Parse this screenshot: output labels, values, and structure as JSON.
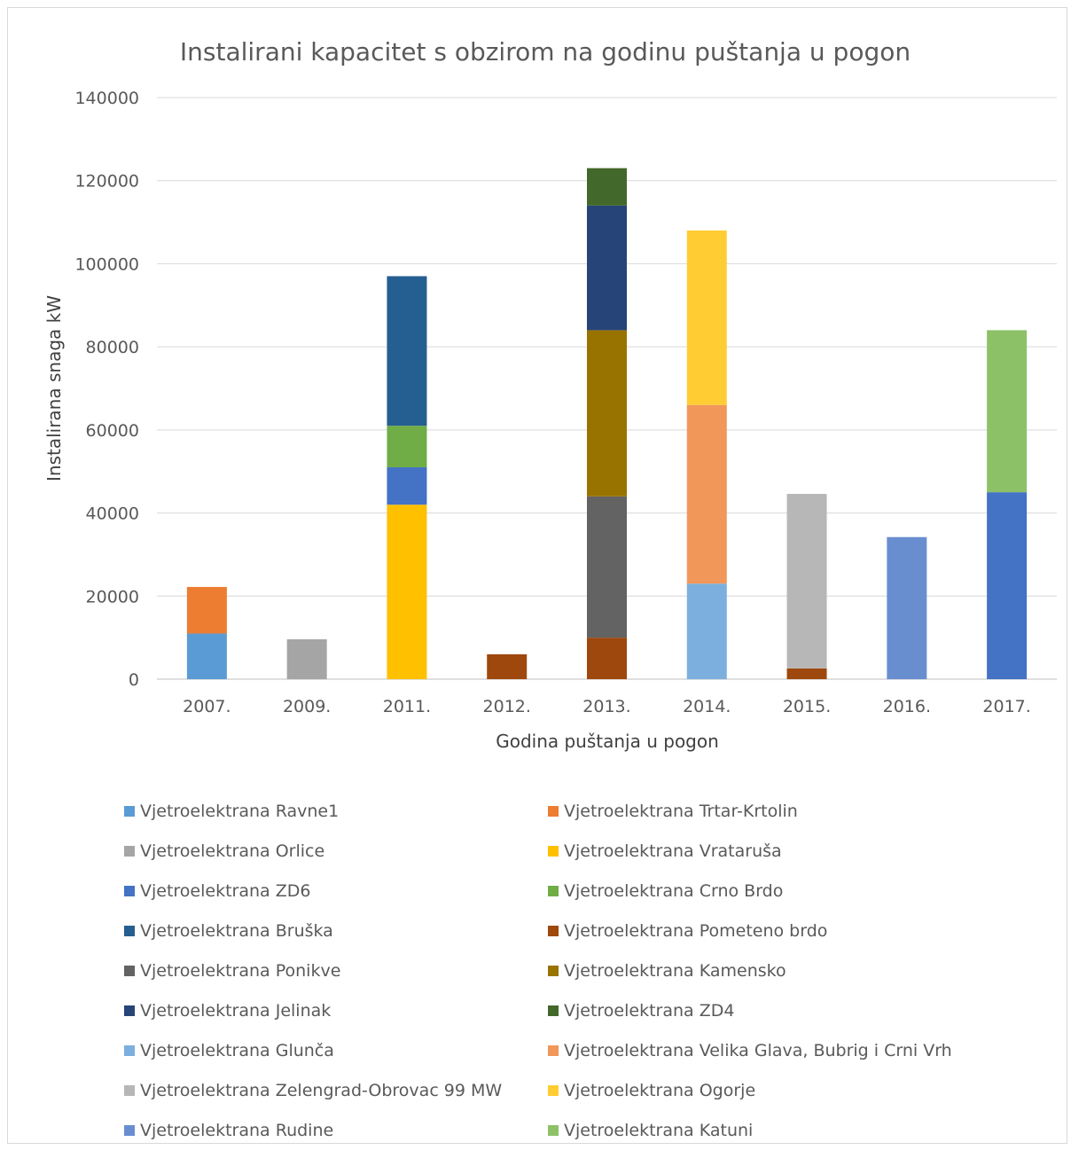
{
  "chart_data": {
    "type": "bar",
    "stacked": true,
    "title": "Instalirani kapacitet s obzirom na godinu puštanja u pogon",
    "xlabel": "Godina puštanja u pogon",
    "ylabel": "Instalirana snaga kW",
    "ylim": [
      0,
      140000
    ],
    "yticks": [
      "0",
      "20000",
      "40000",
      "60000",
      "80000",
      "100000",
      "120000",
      "140000"
    ],
    "grid": true,
    "legend_position": "bottom",
    "categories": [
      "2007.",
      "2009.",
      "2011.",
      "2012.",
      "2013.",
      "2014.",
      "2015.",
      "2016.",
      "2017."
    ],
    "series": [
      {
        "name": "Vjetroelektrana Ravne1",
        "color": "#5b9bd5",
        "values": [
          11000,
          0,
          0,
          0,
          0,
          0,
          0,
          0,
          0
        ]
      },
      {
        "name": "Vjetroelektrana Trtar-Krtolin",
        "color": "#ed7d31",
        "values": [
          11200,
          0,
          0,
          0,
          0,
          0,
          0,
          0,
          0
        ]
      },
      {
        "name": "Vjetroelektrana Orlice",
        "color": "#a5a5a5",
        "values": [
          0,
          9600,
          0,
          0,
          0,
          0,
          0,
          0,
          0
        ]
      },
      {
        "name": "Vjetroelektrana Vrataruša",
        "color": "#ffc000",
        "values": [
          0,
          0,
          42000,
          0,
          0,
          0,
          0,
          0,
          0
        ]
      },
      {
        "name": "Vjetroelektrana ZD6",
        "color": "#4472c4",
        "values": [
          0,
          0,
          9000,
          0,
          0,
          0,
          0,
          0,
          0
        ]
      },
      {
        "name": "Vjetroelektrana Crno Brdo",
        "color": "#70ad47",
        "values": [
          0,
          0,
          10000,
          0,
          0,
          0,
          0,
          0,
          0
        ]
      },
      {
        "name": "Vjetroelektrana Bruška",
        "color": "#255e91",
        "values": [
          0,
          0,
          36000,
          0,
          0,
          0,
          0,
          0,
          0
        ]
      },
      {
        "name": "Vjetroelektrana Pometeno brdo",
        "color": "#9e480e",
        "values": [
          0,
          0,
          0,
          6000,
          10000,
          0,
          2600,
          0,
          0
        ]
      },
      {
        "name": "Vjetroelektrana Ponikve",
        "color": "#636363",
        "values": [
          0,
          0,
          0,
          0,
          34000,
          0,
          0,
          0,
          0
        ]
      },
      {
        "name": "Vjetroelektrana Kamensko",
        "color": "#997300",
        "values": [
          0,
          0,
          0,
          0,
          40000,
          0,
          0,
          0,
          0
        ]
      },
      {
        "name": "Vjetroelektrana Jelinak",
        "color": "#264478",
        "values": [
          0,
          0,
          0,
          0,
          30000,
          0,
          0,
          0,
          0
        ]
      },
      {
        "name": "Vjetroelektrana ZD4",
        "color": "#43682b",
        "values": [
          0,
          0,
          0,
          0,
          9000,
          0,
          0,
          0,
          0
        ]
      },
      {
        "name": "Vjetroelektrana Glunča",
        "color": "#7cafdd",
        "values": [
          0,
          0,
          0,
          0,
          0,
          23000,
          0,
          0,
          0
        ]
      },
      {
        "name": "Vjetroelektrana Velika Glava, Bubrig i Crni Vrh",
        "color": "#f1975a",
        "values": [
          0,
          0,
          0,
          0,
          0,
          43000,
          0,
          0,
          0
        ]
      },
      {
        "name": "Vjetroelektrana Zelengrad-Obrovac 99 MW",
        "color": "#b7b7b7",
        "values": [
          0,
          0,
          0,
          0,
          0,
          0,
          42000,
          0,
          0
        ]
      },
      {
        "name": "Vjetroelektrana Ogorje",
        "color": "#ffcd33",
        "values": [
          0,
          0,
          0,
          0,
          0,
          42000,
          0,
          0,
          0
        ]
      },
      {
        "name": "Vjetroelektrana Rudine",
        "color": "#698ed0",
        "values": [
          0,
          0,
          0,
          0,
          0,
          0,
          0,
          34200,
          0
        ]
      },
      {
        "name": "Vjetroelektrana Katuni",
        "color": "#8cc168",
        "values": [
          0,
          0,
          0,
          0,
          0,
          0,
          0,
          0,
          39000
        ]
      },
      {
        "name": "",
        "color": "#4472c4",
        "values": [
          0,
          0,
          0,
          0,
          0,
          0,
          0,
          0,
          45000
        ]
      }
    ],
    "stack_order": [
      "Vjetroelektrana Ravne1",
      "Vjetroelektrana Trtar-Krtolin",
      "Vjetroelektrana Orlice",
      "Vjetroelektrana Vrataruša",
      "Vjetroelektrana ZD6",
      "Vjetroelektrana Crno Brdo",
      "Vjetroelektrana Bruška",
      "Vjetroelektrana Pometeno brdo",
      "Vjetroelektrana Ponikve",
      "Vjetroelektrana Kamensko",
      "Vjetroelektrana Jelinak",
      "Vjetroelektrana ZD4",
      "Vjetroelektrana Glunča",
      "Vjetroelektrana Velika Glava, Bubrig i Crni Vrh",
      "Vjetroelektrana Ogorje",
      "Vjetroelektrana Zelengrad-Obrovac 99 MW",
      "Vjetroelektrana Rudine",
      "",
      "Vjetroelektrana Katuni"
    ]
  }
}
